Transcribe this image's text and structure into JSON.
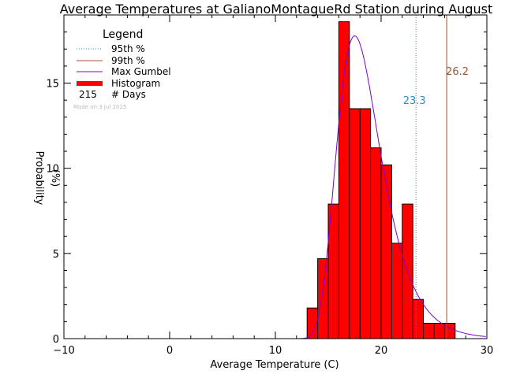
{
  "chart_data": {
    "type": "bar",
    "title": "Average Temperatures at GalianoMontagueRd Station during August",
    "xlabel": "Average Temperature (C)",
    "ylabel": "Probability",
    "ylabel_unit": "(%)",
    "xlim": [
      -10,
      30
    ],
    "ylim": [
      0,
      19
    ],
    "xticks": [
      -10,
      0,
      10,
      20,
      30
    ],
    "yticks": [
      0,
      5,
      10,
      15
    ],
    "grid": false,
    "legend": {
      "title": "Legend",
      "placement": "top-left",
      "entries": [
        {
          "label": "95th %",
          "style": "dotted",
          "color": "#1f8fd6"
        },
        {
          "label": "99th %",
          "style": "solid",
          "color": "#a0522d"
        },
        {
          "label": "Max Gumbel",
          "style": "solid",
          "color": "#7d00cc"
        },
        {
          "label": "Histogram",
          "style": "thick",
          "color": "#ff0000"
        }
      ],
      "days_count": "215",
      "days_label": "# Days"
    },
    "made_on": "Made on 3 Jul 2025",
    "histogram": {
      "bin_width": 1,
      "bins": [
        {
          "x": 13,
          "value": 1.8
        },
        {
          "x": 14,
          "value": 4.7
        },
        {
          "x": 15,
          "value": 7.9
        },
        {
          "x": 16,
          "value": 18.6
        },
        {
          "x": 17,
          "value": 13.5
        },
        {
          "x": 18,
          "value": 13.5
        },
        {
          "x": 19,
          "value": 11.2
        },
        {
          "x": 20,
          "value": 10.2
        },
        {
          "x": 21,
          "value": 5.6
        },
        {
          "x": 22,
          "value": 7.9
        },
        {
          "x": 23,
          "value": 2.3
        },
        {
          "x": 24,
          "value": 0.9
        },
        {
          "x": 25,
          "value": 0.9
        },
        {
          "x": 26,
          "value": 0.9
        }
      ]
    },
    "gumbel": {
      "mu": 17.5,
      "beta": 2.07
    },
    "percentiles": [
      {
        "name": "95th %",
        "value": 23.3,
        "label": "23.3",
        "color": "#1f8fd6"
      },
      {
        "name": "99th %",
        "value": 26.2,
        "label": "26.2",
        "color": "#a0522d"
      }
    ]
  }
}
